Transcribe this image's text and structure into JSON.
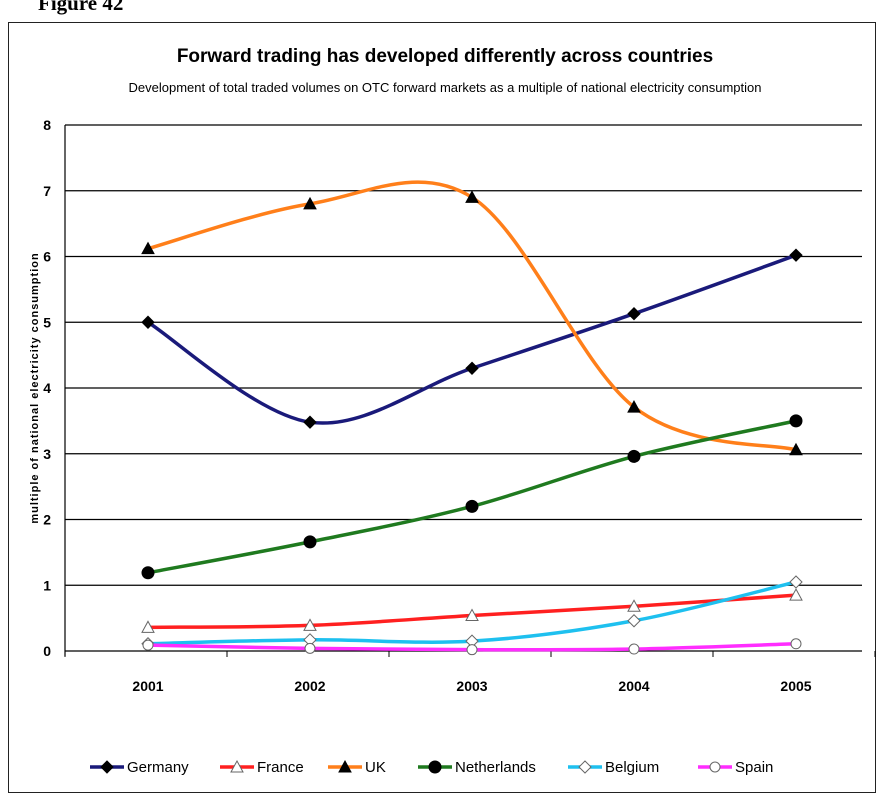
{
  "header": {
    "label": "Figure 42"
  },
  "chart_data": {
    "type": "line",
    "title": "Forward trading has developed differently across countries",
    "subtitle": "Development of total traded volumes on OTC forward markets as a multiple of national electricity consumption",
    "xlabel": "",
    "ylabel": "multiple of national electricity consumption",
    "categories": [
      "2001",
      "2002",
      "2003",
      "2004",
      "2005"
    ],
    "ylim": [
      0,
      8
    ],
    "yticks": [
      "0",
      "1",
      "2",
      "3",
      "4",
      "5",
      "6",
      "7",
      "8"
    ],
    "grid": true,
    "legend_position": "bottom",
    "series": [
      {
        "name": "Germany",
        "values": [
          5.0,
          3.48,
          4.3,
          5.13,
          6.02
        ],
        "color": "#1a1a7a",
        "marker": "diamond-filled"
      },
      {
        "name": "France",
        "values": [
          0.36,
          0.39,
          0.54,
          0.68,
          0.85
        ],
        "color": "#ff2020",
        "marker": "triangle-open"
      },
      {
        "name": "UK",
        "values": [
          6.12,
          6.8,
          6.9,
          3.71,
          3.06
        ],
        "color": "#ff7f1a",
        "marker": "triangle-filled"
      },
      {
        "name": "Netherlands",
        "values": [
          1.19,
          1.66,
          2.2,
          2.96,
          3.5
        ],
        "color": "#1f7a1f",
        "marker": "circle-filled"
      },
      {
        "name": "Belgium",
        "values": [
          0.11,
          0.17,
          0.15,
          0.46,
          1.05
        ],
        "color": "#1ec0ef",
        "marker": "diamond-open"
      },
      {
        "name": "Spain",
        "values": [
          0.09,
          0.04,
          0.02,
          0.03,
          0.11
        ],
        "color": "#ff2dff",
        "marker": "circle-open"
      }
    ]
  }
}
